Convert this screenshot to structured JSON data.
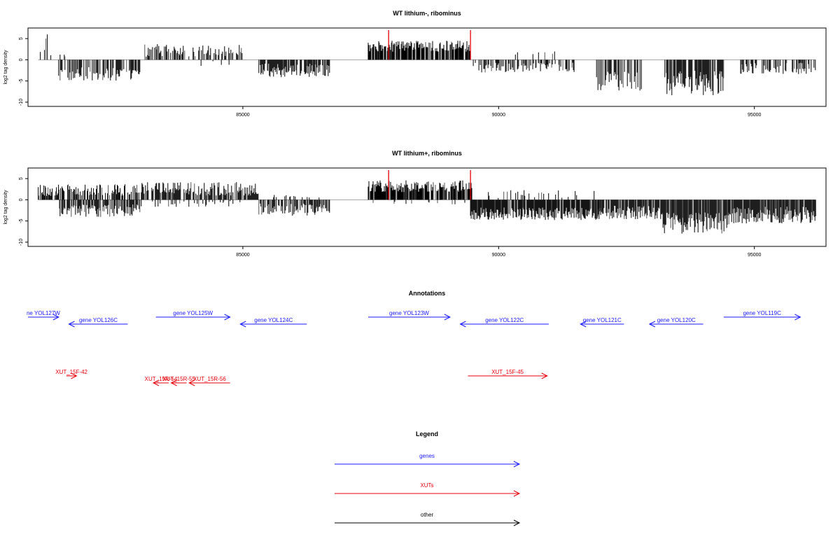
{
  "chart_data": [
    {
      "type": "bar",
      "title": "WT lithium-, ribominus",
      "ylabel": "log2 tag density",
      "xlabel": "",
      "xlim": [
        80800,
        96400
      ],
      "ylim": [
        -11,
        7.5
      ],
      "x_ticks": [
        85000,
        90000,
        95000
      ],
      "y_ticks": [
        5,
        0,
        -5,
        -10
      ],
      "marker_positions": [
        87850,
        89450
      ],
      "marker_color": "#e8000b",
      "segments": [
        {
          "start": 81000,
          "end": 81250,
          "sign": 1,
          "mean": 3.5,
          "spread": 2.5,
          "density": 0.55
        },
        {
          "start": 81400,
          "end": 81600,
          "sign": 1,
          "mean": 1.5,
          "spread": 1.0,
          "density": 0.15
        },
        {
          "start": 81400,
          "end": 83000,
          "sign": -1,
          "mean": 3.3,
          "spread": 1.6,
          "density": 0.7
        },
        {
          "start": 83000,
          "end": 85000,
          "sign": 1,
          "mean": 2.2,
          "spread": 1.5,
          "density": 0.55
        },
        {
          "start": 83800,
          "end": 85000,
          "sign": -1,
          "mean": 0.9,
          "spread": 0.6,
          "density": 0.05
        },
        {
          "start": 85300,
          "end": 86700,
          "sign": -1,
          "mean": 2.5,
          "spread": 1.6,
          "density": 0.7
        },
        {
          "start": 87450,
          "end": 89450,
          "sign": 1,
          "mean": 3.2,
          "spread": 1.3,
          "density": 0.85
        },
        {
          "start": 89450,
          "end": 91500,
          "sign": -1,
          "mean": 1.8,
          "spread": 1.2,
          "density": 0.5
        },
        {
          "start": 90150,
          "end": 91200,
          "sign": 1,
          "mean": 1.2,
          "spread": 0.8,
          "density": 0.08
        },
        {
          "start": 91900,
          "end": 92800,
          "sign": -1,
          "mean": 5.0,
          "spread": 2.3,
          "density": 0.65
        },
        {
          "start": 93250,
          "end": 94400,
          "sign": -1,
          "mean": 5.5,
          "spread": 3.0,
          "density": 0.8
        },
        {
          "start": 94700,
          "end": 96200,
          "sign": -1,
          "mean": 2.0,
          "spread": 1.4,
          "density": 0.5
        }
      ]
    },
    {
      "type": "bar",
      "title": "WT lithium+, ribominus",
      "ylabel": "log2 tag density",
      "xlabel": "",
      "xlim": [
        80800,
        96400
      ],
      "ylim": [
        -11,
        7.5
      ],
      "x_ticks": [
        85000,
        90000,
        95000
      ],
      "y_ticks": [
        5,
        0,
        -5,
        -10
      ],
      "marker_positions": [
        87850,
        89450
      ],
      "marker_color": "#e8000b",
      "segments": [
        {
          "start": 81000,
          "end": 83000,
          "sign": 1,
          "mean": 2.3,
          "spread": 1.4,
          "density": 0.7
        },
        {
          "start": 81400,
          "end": 83000,
          "sign": -1,
          "mean": 2.6,
          "spread": 1.5,
          "density": 0.7
        },
        {
          "start": 83000,
          "end": 85300,
          "sign": 1,
          "mean": 2.6,
          "spread": 1.6,
          "density": 0.8
        },
        {
          "start": 83000,
          "end": 85300,
          "sign": -1,
          "mean": 1.0,
          "spread": 0.7,
          "density": 0.2
        },
        {
          "start": 85300,
          "end": 86700,
          "sign": -1,
          "mean": 2.3,
          "spread": 1.5,
          "density": 0.7
        },
        {
          "start": 85600,
          "end": 86600,
          "sign": 1,
          "mean": 0.9,
          "spread": 0.5,
          "density": 0.1
        },
        {
          "start": 87450,
          "end": 89500,
          "sign": 1,
          "mean": 3.2,
          "spread": 1.4,
          "density": 0.9
        },
        {
          "start": 87450,
          "end": 89500,
          "sign": -1,
          "mean": 0.8,
          "spread": 0.4,
          "density": 0.1
        },
        {
          "start": 89450,
          "end": 92000,
          "sign": -1,
          "mean": 3.3,
          "spread": 1.5,
          "density": 0.95
        },
        {
          "start": 89800,
          "end": 91900,
          "sign": 1,
          "mean": 1.4,
          "spread": 1.0,
          "density": 0.15
        },
        {
          "start": 91950,
          "end": 93200,
          "sign": -1,
          "mean": 3.0,
          "spread": 1.6,
          "density": 0.9
        },
        {
          "start": 93200,
          "end": 94500,
          "sign": -1,
          "mean": 5.5,
          "spread": 2.5,
          "density": 0.97
        },
        {
          "start": 94500,
          "end": 96200,
          "sign": -1,
          "mean": 3.6,
          "spread": 2.0,
          "density": 0.95
        }
      ]
    }
  ],
  "annotations": {
    "title": "Annotations",
    "genes": [
      {
        "label": "ne YOL127W",
        "start": 80800,
        "end": 81400,
        "strand": "+"
      },
      {
        "label": "gene YOL126C",
        "start": 81600,
        "end": 82750,
        "strand": "-"
      },
      {
        "label": "gene YOL125W",
        "start": 83300,
        "end": 84750,
        "strand": "+"
      },
      {
        "label": "gene YOL124C",
        "start": 84950,
        "end": 86250,
        "strand": "-"
      },
      {
        "label": "gene YOL123W",
        "start": 87450,
        "end": 89050,
        "strand": "+"
      },
      {
        "label": "gene YOL122C",
        "start": 89250,
        "end": 90980,
        "strand": "-"
      },
      {
        "label": "gene YOL121C",
        "start": 91600,
        "end": 92450,
        "strand": "-"
      },
      {
        "label": "gene YOL120C",
        "start": 92950,
        "end": 94000,
        "strand": "-"
      },
      {
        "label": "gene YOL119C",
        "start": 94400,
        "end": 95900,
        "strand": "+"
      }
    ],
    "xuts": [
      {
        "label": "XUT_15F-42",
        "start": 81550,
        "end": 81750,
        "strand": "+"
      },
      {
        "label": "XUT_15R-54",
        "start": 83250,
        "end": 83550,
        "strand": "-"
      },
      {
        "label": "XUT_15R-55",
        "start": 83600,
        "end": 83900,
        "strand": "-"
      },
      {
        "label": "XUT_15R-56",
        "start": 83950,
        "end": 84750,
        "strand": "-"
      },
      {
        "label": "XUT_15F-45",
        "start": 89400,
        "end": 90950,
        "strand": "+"
      }
    ]
  },
  "legend": {
    "title": "Legend",
    "items": [
      {
        "label": "genes",
        "color": "#1a1aff"
      },
      {
        "label": "XUTs",
        "color": "#e8000b"
      },
      {
        "label": "other",
        "color": "#000000"
      }
    ]
  }
}
